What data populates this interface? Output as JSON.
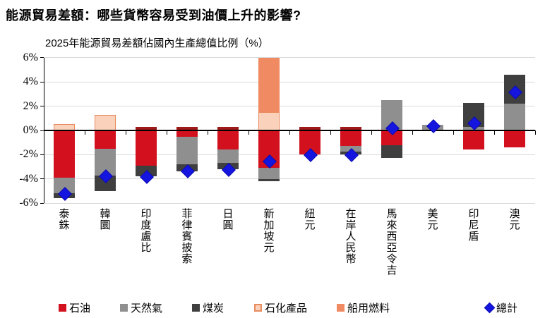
{
  "header": {
    "title": "能源貿易差額：哪些貨幣容易受到油價上升的影響?",
    "subtitle": "2025年能源貿易差額佔國內生產總值比例（%）"
  },
  "colors": {
    "oil": "#d2101e",
    "gas": "#8f8f8f",
    "coal": "#3f3f3f",
    "petchem_fill": "#fad2bc",
    "petchem_border": "#e98b5f",
    "marine": "#ef8a62",
    "total": "#1515e0",
    "total_border": "#0b0bb0",
    "cap": "#9e1a1a",
    "gridline": "#d9d9d9",
    "axis": "#000000"
  },
  "chart_data": {
    "type": "bar",
    "stacked": true,
    "title": "2025年能源貿易差額佔國內生產總值比例（%）",
    "xlabel": "",
    "ylabel": "%",
    "ylim": [
      -6,
      6
    ],
    "ytick_values": [
      6,
      4,
      2,
      0,
      -2,
      -4,
      -6
    ],
    "ytick_labels": [
      "6%",
      "4%",
      "2%",
      "0%",
      "-2%",
      "-4%",
      "-6%"
    ],
    "grid": true,
    "legend_position": "bottom",
    "legend": [
      {
        "key": "oil",
        "label": "石油",
        "marker": "square"
      },
      {
        "key": "gas",
        "label": "天然氣",
        "marker": "square"
      },
      {
        "key": "coal",
        "label": "煤炭",
        "marker": "square"
      },
      {
        "key": "petchem",
        "label": "石化產品",
        "marker": "square-outline"
      },
      {
        "key": "marine",
        "label": "船用燃料",
        "marker": "square"
      },
      {
        "key": "total",
        "label": "總計",
        "marker": "diamond"
      }
    ],
    "categories": [
      "泰銖",
      "韓圜",
      "印度盧比",
      "菲律賓披索",
      "日圓",
      "新加坡元",
      "紐元",
      "在岸人民幣",
      "馬來西亞令吉",
      "美元",
      "印尼盾",
      "澳元"
    ],
    "bars": [
      {
        "currency": "泰銖",
        "segments": [
          {
            "series": "petchem",
            "value": 0.5
          },
          {
            "series": "oil",
            "value": -3.9
          },
          {
            "series": "gas",
            "value": -1.3
          },
          {
            "series": "coal",
            "value": -0.4
          }
        ],
        "total": -5.2,
        "cap": false
      },
      {
        "currency": "韓圜",
        "segments": [
          {
            "series": "petchem",
            "value": 1.3
          },
          {
            "series": "oil",
            "value": -1.5
          },
          {
            "series": "gas",
            "value": -2.2
          },
          {
            "series": "coal",
            "value": -1.3
          }
        ],
        "total": -3.7,
        "cap": false
      },
      {
        "currency": "印度盧比",
        "segments": [
          {
            "series": "oil",
            "value": -2.9
          },
          {
            "series": "coal",
            "value": -0.9
          }
        ],
        "total": -3.8,
        "cap": true
      },
      {
        "currency": "菲律賓披索",
        "segments": [
          {
            "series": "oil",
            "value": -0.5
          },
          {
            "series": "gas",
            "value": -2.3
          },
          {
            "series": "coal",
            "value": -0.6
          }
        ],
        "total": -3.3,
        "cap": true
      },
      {
        "currency": "日圓",
        "segments": [
          {
            "series": "oil",
            "value": -1.6
          },
          {
            "series": "gas",
            "value": -1.1
          },
          {
            "series": "coal",
            "value": -0.5
          }
        ],
        "total": -3.2,
        "cap": true
      },
      {
        "currency": "新加坡元",
        "segments": [
          {
            "series": "petchem",
            "value": 1.5
          },
          {
            "series": "marine",
            "value": 4.5
          },
          {
            "series": "oil",
            "value": -3.1
          },
          {
            "series": "gas",
            "value": -0.9
          },
          {
            "series": "coal",
            "value": -0.2
          }
        ],
        "total": -2.5,
        "cap": false,
        "clipped_top": true
      },
      {
        "currency": "紐元",
        "segments": [
          {
            "series": "oil",
            "value": -2.0
          }
        ],
        "total": -2.0,
        "cap": true
      },
      {
        "currency": "在岸人民幣",
        "segments": [
          {
            "series": "oil",
            "value": -1.3
          },
          {
            "series": "gas",
            "value": -0.45
          },
          {
            "series": "coal",
            "value": -0.25
          }
        ],
        "total": -2.0,
        "cap": true
      },
      {
        "currency": "馬來西亞令吉",
        "segments": [
          {
            "series": "gas",
            "value": 2.5
          },
          {
            "series": "oil",
            "value": -1.2
          },
          {
            "series": "coal",
            "value": -1.05
          }
        ],
        "total": 0.25,
        "cap": false
      },
      {
        "currency": "美元",
        "segments": [
          {
            "series": "gas",
            "value": 0.45
          }
        ],
        "total": 0.4,
        "cap": false
      },
      {
        "currency": "印尼盾",
        "segments": [
          {
            "series": "gas",
            "value": 0.3
          },
          {
            "series": "coal",
            "value": 2.0
          },
          {
            "series": "oil",
            "value": -1.6
          }
        ],
        "total": 0.65,
        "cap": false
      },
      {
        "currency": "澳元",
        "segments": [
          {
            "series": "gas",
            "value": 2.2
          },
          {
            "series": "coal",
            "value": 2.4
          },
          {
            "series": "oil",
            "value": -1.4
          }
        ],
        "total": 3.2,
        "cap": false
      }
    ]
  }
}
